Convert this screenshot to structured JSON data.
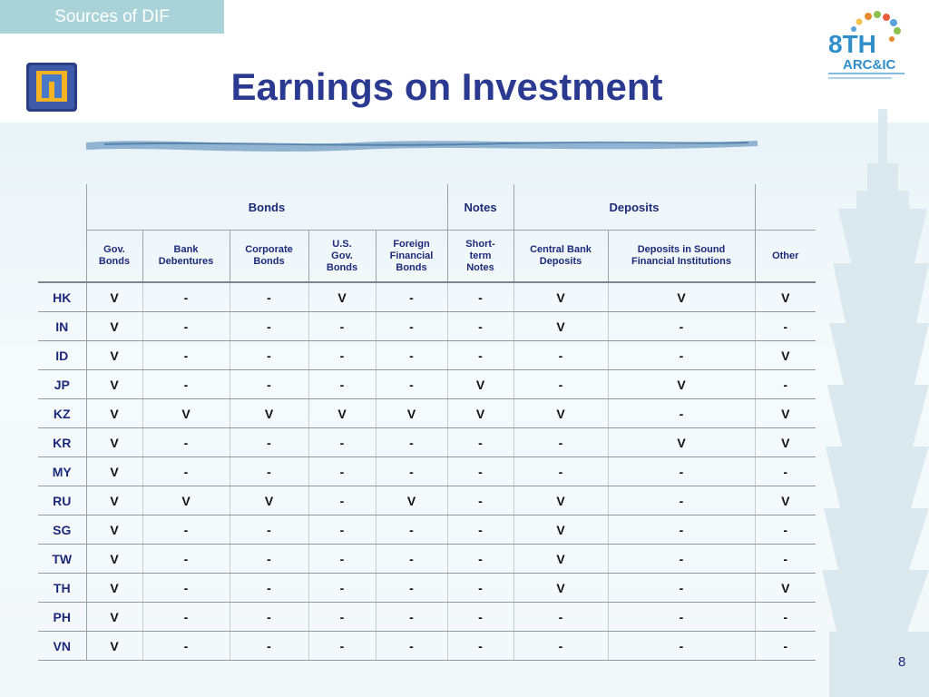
{
  "section_tab": "Sources of DIF",
  "title": "Earnings on Investment",
  "logo_right": {
    "line1": "8TH",
    "line2": "ARC&IC"
  },
  "table": {
    "groups": [
      "Bonds",
      "Notes",
      "Deposits"
    ],
    "columns": [
      "Gov.\nBonds",
      "Bank\nDebentures",
      "Corporate\nBonds",
      "U.S.\nGov.\nBonds",
      "Foreign\nFinancial\nBonds",
      "Short-\nterm\nNotes",
      "Central Bank\nDeposits",
      "Deposits in Sound\nFinancial Institutions",
      "Other"
    ],
    "rows": [
      {
        "country": "HK",
        "values": [
          "V",
          "-",
          "-",
          "V",
          "-",
          "-",
          "V",
          "V",
          "V"
        ]
      },
      {
        "country": "IN",
        "values": [
          "V",
          "-",
          "-",
          "-",
          "-",
          "-",
          "V",
          "-",
          "-"
        ]
      },
      {
        "country": "ID",
        "values": [
          "V",
          "-",
          "-",
          "-",
          "-",
          "-",
          "-",
          "-",
          "V"
        ]
      },
      {
        "country": "JP",
        "values": [
          "V",
          "-",
          "-",
          "-",
          "-",
          "V",
          "-",
          "V",
          "-"
        ]
      },
      {
        "country": "KZ",
        "values": [
          "V",
          "V",
          "V",
          "V",
          "V",
          "V",
          "V",
          "-",
          "V"
        ]
      },
      {
        "country": "KR",
        "values": [
          "V",
          "-",
          "-",
          "-",
          "-",
          "-",
          "-",
          "V",
          "V"
        ]
      },
      {
        "country": "MY",
        "values": [
          "V",
          "-",
          "-",
          "-",
          "-",
          "-",
          "-",
          "-",
          "-"
        ]
      },
      {
        "country": "RU",
        "values": [
          "V",
          "V",
          "V",
          "-",
          "V",
          "-",
          "V",
          "-",
          "V"
        ]
      },
      {
        "country": "SG",
        "values": [
          "V",
          "-",
          "-",
          "-",
          "-",
          "-",
          "V",
          "-",
          "-"
        ]
      },
      {
        "country": "TW",
        "values": [
          "V",
          "-",
          "-",
          "-",
          "-",
          "-",
          "V",
          "-",
          "-"
        ]
      },
      {
        "country": "TH",
        "values": [
          "V",
          "-",
          "-",
          "-",
          "-",
          "-",
          "V",
          "-",
          "V"
        ]
      },
      {
        "country": "PH",
        "values": [
          "V",
          "-",
          "-",
          "-",
          "-",
          "-",
          "-",
          "-",
          "-"
        ]
      },
      {
        "country": "VN",
        "values": [
          "V",
          "-",
          "-",
          "-",
          "-",
          "-",
          "-",
          "-",
          "-"
        ]
      }
    ]
  },
  "page_number": "8",
  "colors": {
    "title": "#2b3a91",
    "tab_bg": "#a9d3d9",
    "header_text": "#1d2a7a"
  }
}
